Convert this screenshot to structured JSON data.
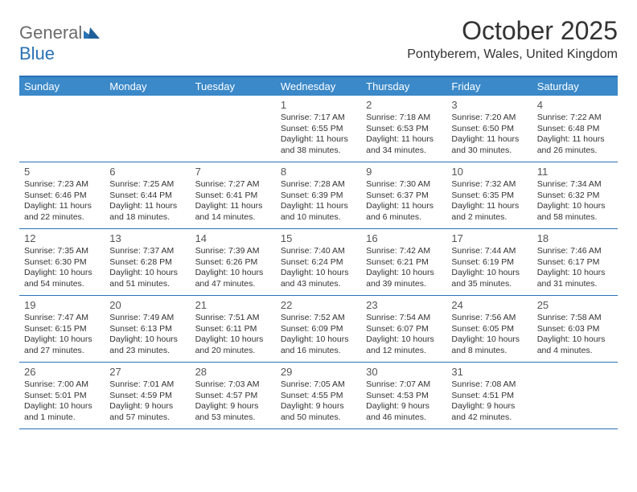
{
  "logo": {
    "word1": "General",
    "word2": "Blue"
  },
  "title": "October 2025",
  "location": "Pontyberem, Wales, United Kingdom",
  "colors": {
    "accent": "#2a72b5",
    "header_bg": "#3b89c9",
    "header_text": "#ffffff",
    "body_text": "#333333",
    "logo_gray": "#6b6b6b",
    "logo_blue": "#2a72b5",
    "background": "#ffffff"
  },
  "day_names": [
    "Sunday",
    "Monday",
    "Tuesday",
    "Wednesday",
    "Thursday",
    "Friday",
    "Saturday"
  ],
  "weeks": [
    [
      {
        "num": "",
        "sunrise": "",
        "sunset": "",
        "daylight": ""
      },
      {
        "num": "",
        "sunrise": "",
        "sunset": "",
        "daylight": ""
      },
      {
        "num": "",
        "sunrise": "",
        "sunset": "",
        "daylight": ""
      },
      {
        "num": "1",
        "sunrise": "Sunrise: 7:17 AM",
        "sunset": "Sunset: 6:55 PM",
        "daylight": "Daylight: 11 hours and 38 minutes."
      },
      {
        "num": "2",
        "sunrise": "Sunrise: 7:18 AM",
        "sunset": "Sunset: 6:53 PM",
        "daylight": "Daylight: 11 hours and 34 minutes."
      },
      {
        "num": "3",
        "sunrise": "Sunrise: 7:20 AM",
        "sunset": "Sunset: 6:50 PM",
        "daylight": "Daylight: 11 hours and 30 minutes."
      },
      {
        "num": "4",
        "sunrise": "Sunrise: 7:22 AM",
        "sunset": "Sunset: 6:48 PM",
        "daylight": "Daylight: 11 hours and 26 minutes."
      }
    ],
    [
      {
        "num": "5",
        "sunrise": "Sunrise: 7:23 AM",
        "sunset": "Sunset: 6:46 PM",
        "daylight": "Daylight: 11 hours and 22 minutes."
      },
      {
        "num": "6",
        "sunrise": "Sunrise: 7:25 AM",
        "sunset": "Sunset: 6:44 PM",
        "daylight": "Daylight: 11 hours and 18 minutes."
      },
      {
        "num": "7",
        "sunrise": "Sunrise: 7:27 AM",
        "sunset": "Sunset: 6:41 PM",
        "daylight": "Daylight: 11 hours and 14 minutes."
      },
      {
        "num": "8",
        "sunrise": "Sunrise: 7:28 AM",
        "sunset": "Sunset: 6:39 PM",
        "daylight": "Daylight: 11 hours and 10 minutes."
      },
      {
        "num": "9",
        "sunrise": "Sunrise: 7:30 AM",
        "sunset": "Sunset: 6:37 PM",
        "daylight": "Daylight: 11 hours and 6 minutes."
      },
      {
        "num": "10",
        "sunrise": "Sunrise: 7:32 AM",
        "sunset": "Sunset: 6:35 PM",
        "daylight": "Daylight: 11 hours and 2 minutes."
      },
      {
        "num": "11",
        "sunrise": "Sunrise: 7:34 AM",
        "sunset": "Sunset: 6:32 PM",
        "daylight": "Daylight: 10 hours and 58 minutes."
      }
    ],
    [
      {
        "num": "12",
        "sunrise": "Sunrise: 7:35 AM",
        "sunset": "Sunset: 6:30 PM",
        "daylight": "Daylight: 10 hours and 54 minutes."
      },
      {
        "num": "13",
        "sunrise": "Sunrise: 7:37 AM",
        "sunset": "Sunset: 6:28 PM",
        "daylight": "Daylight: 10 hours and 51 minutes."
      },
      {
        "num": "14",
        "sunrise": "Sunrise: 7:39 AM",
        "sunset": "Sunset: 6:26 PM",
        "daylight": "Daylight: 10 hours and 47 minutes."
      },
      {
        "num": "15",
        "sunrise": "Sunrise: 7:40 AM",
        "sunset": "Sunset: 6:24 PM",
        "daylight": "Daylight: 10 hours and 43 minutes."
      },
      {
        "num": "16",
        "sunrise": "Sunrise: 7:42 AM",
        "sunset": "Sunset: 6:21 PM",
        "daylight": "Daylight: 10 hours and 39 minutes."
      },
      {
        "num": "17",
        "sunrise": "Sunrise: 7:44 AM",
        "sunset": "Sunset: 6:19 PM",
        "daylight": "Daylight: 10 hours and 35 minutes."
      },
      {
        "num": "18",
        "sunrise": "Sunrise: 7:46 AM",
        "sunset": "Sunset: 6:17 PM",
        "daylight": "Daylight: 10 hours and 31 minutes."
      }
    ],
    [
      {
        "num": "19",
        "sunrise": "Sunrise: 7:47 AM",
        "sunset": "Sunset: 6:15 PM",
        "daylight": "Daylight: 10 hours and 27 minutes."
      },
      {
        "num": "20",
        "sunrise": "Sunrise: 7:49 AM",
        "sunset": "Sunset: 6:13 PM",
        "daylight": "Daylight: 10 hours and 23 minutes."
      },
      {
        "num": "21",
        "sunrise": "Sunrise: 7:51 AM",
        "sunset": "Sunset: 6:11 PM",
        "daylight": "Daylight: 10 hours and 20 minutes."
      },
      {
        "num": "22",
        "sunrise": "Sunrise: 7:52 AM",
        "sunset": "Sunset: 6:09 PM",
        "daylight": "Daylight: 10 hours and 16 minutes."
      },
      {
        "num": "23",
        "sunrise": "Sunrise: 7:54 AM",
        "sunset": "Sunset: 6:07 PM",
        "daylight": "Daylight: 10 hours and 12 minutes."
      },
      {
        "num": "24",
        "sunrise": "Sunrise: 7:56 AM",
        "sunset": "Sunset: 6:05 PM",
        "daylight": "Daylight: 10 hours and 8 minutes."
      },
      {
        "num": "25",
        "sunrise": "Sunrise: 7:58 AM",
        "sunset": "Sunset: 6:03 PM",
        "daylight": "Daylight: 10 hours and 4 minutes."
      }
    ],
    [
      {
        "num": "26",
        "sunrise": "Sunrise: 7:00 AM",
        "sunset": "Sunset: 5:01 PM",
        "daylight": "Daylight: 10 hours and 1 minute."
      },
      {
        "num": "27",
        "sunrise": "Sunrise: 7:01 AM",
        "sunset": "Sunset: 4:59 PM",
        "daylight": "Daylight: 9 hours and 57 minutes."
      },
      {
        "num": "28",
        "sunrise": "Sunrise: 7:03 AM",
        "sunset": "Sunset: 4:57 PM",
        "daylight": "Daylight: 9 hours and 53 minutes."
      },
      {
        "num": "29",
        "sunrise": "Sunrise: 7:05 AM",
        "sunset": "Sunset: 4:55 PM",
        "daylight": "Daylight: 9 hours and 50 minutes."
      },
      {
        "num": "30",
        "sunrise": "Sunrise: 7:07 AM",
        "sunset": "Sunset: 4:53 PM",
        "daylight": "Daylight: 9 hours and 46 minutes."
      },
      {
        "num": "31",
        "sunrise": "Sunrise: 7:08 AM",
        "sunset": "Sunset: 4:51 PM",
        "daylight": "Daylight: 9 hours and 42 minutes."
      },
      {
        "num": "",
        "sunrise": "",
        "sunset": "",
        "daylight": ""
      }
    ]
  ]
}
